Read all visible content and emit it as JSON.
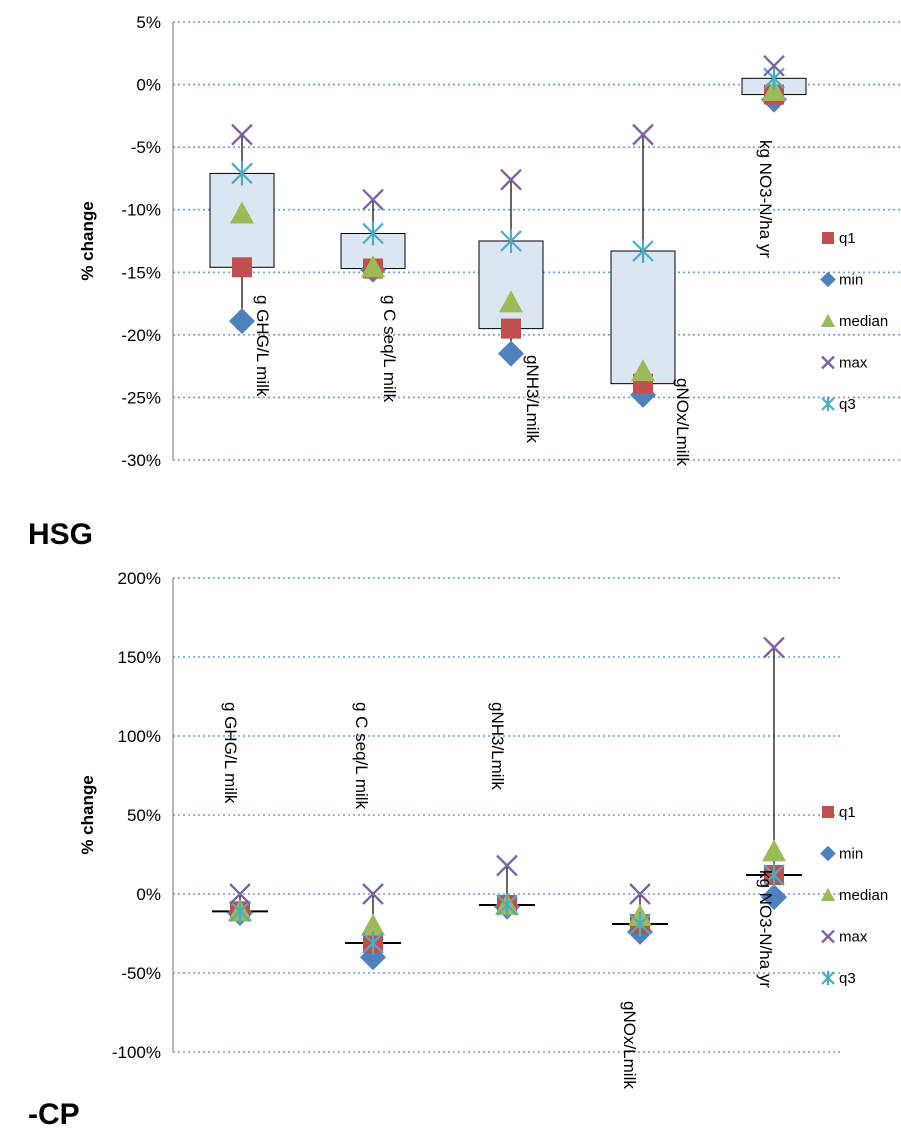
{
  "colors": {
    "q1": "#c0504d",
    "min": "#4f81bd",
    "median": "#9bbb59",
    "max": "#8064a2",
    "q3": "#4bacc6",
    "box_fill": "#dce6f2",
    "box_stroke": "#000000",
    "grid": "#6f9fd8"
  },
  "legend": [
    "q1",
    "min",
    "median",
    "max",
    "q3"
  ],
  "panels": [
    {
      "label": "HSG"
    },
    {
      "label": "-CP"
    }
  ],
  "chart_data": [
    {
      "type": "box",
      "ylabel": "% change",
      "ylim": [
        -30,
        5
      ],
      "yticks": [
        5,
        0,
        -5,
        -10,
        -15,
        -20,
        -25,
        -30
      ],
      "ytick_labels": [
        "5%",
        "0%",
        "-5%",
        "-10%",
        "-15%",
        "-20%",
        "-25%",
        "-30%"
      ],
      "grid": true,
      "legend_position": "right",
      "categories": [
        "g GHG/L milk",
        "g C seq/L milk",
        "gNH3/Lmilk",
        "gNOx/Lmilk",
        "kg NO3-N/ha yr"
      ],
      "series": [
        {
          "name": "q1",
          "values": [
            -14.6,
            -14.7,
            -19.5,
            -23.9,
            -0.8
          ]
        },
        {
          "name": "min",
          "values": [
            -18.9,
            -14.8,
            -21.5,
            -24.8,
            -1.2
          ]
        },
        {
          "name": "median",
          "values": [
            -10.3,
            -14.6,
            -17.4,
            -22.9,
            -0.5
          ]
        },
        {
          "name": "max",
          "values": [
            -4.0,
            -9.2,
            -7.6,
            -4.0,
            1.5
          ]
        },
        {
          "name": "q3",
          "values": [
            -7.1,
            -11.9,
            -12.5,
            -13.3,
            0.5
          ]
        }
      ]
    },
    {
      "type": "box",
      "ylabel": "% change",
      "ylim": [
        -100,
        200
      ],
      "yticks": [
        200,
        150,
        100,
        50,
        0,
        -50,
        -100
      ],
      "ytick_labels": [
        "200%",
        "150%",
        "100%",
        "50%",
        "0%",
        "-50%",
        "-100%"
      ],
      "grid": true,
      "legend_position": "right",
      "categories": [
        "g GHG/L milk",
        "g C seq/L milk",
        "gNH3/Lmilk",
        "gNOx/Lmilk",
        "kg NO3-N/ha yr"
      ],
      "series": [
        {
          "name": "q1",
          "values": [
            -11,
            -31,
            -7,
            -19,
            12
          ]
        },
        {
          "name": "min",
          "values": [
            -12,
            -40,
            -8,
            -24,
            -2
          ]
        },
        {
          "name": "median",
          "values": [
            -11,
            -20,
            -7,
            -14,
            27
          ]
        },
        {
          "name": "max",
          "values": [
            0,
            0,
            18,
            0,
            156
          ]
        },
        {
          "name": "q3",
          "values": [
            -11,
            -31,
            -7,
            -19,
            12
          ]
        }
      ]
    }
  ]
}
